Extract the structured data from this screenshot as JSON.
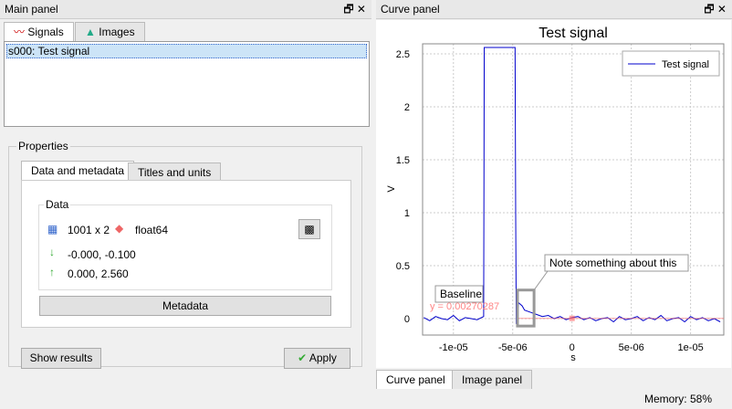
{
  "main_panel": {
    "title": "Main panel",
    "tabs": [
      "Signals",
      "Images"
    ],
    "signals": [
      "s000: Test signal"
    ],
    "properties": {
      "title": "Properties",
      "tabs": [
        "Data and metadata",
        "Titles and units"
      ],
      "data_group": "Data",
      "shape": "1001 x 2",
      "dtype": "float64",
      "min": "-0.000, -0.100",
      "max": "0.000, 2.560",
      "metadata_button": "Metadata"
    },
    "buttons": [
      "Show results",
      "Apply"
    ]
  },
  "curve_panel": {
    "title": "Curve panel",
    "tabs": [
      "Curve panel",
      "Image panel"
    ],
    "chart_data": {
      "type": "line",
      "title": "Test signal",
      "x_label": "s",
      "y_label": "V",
      "grid": true,
      "legend": "top-right",
      "x": [
        -1.25e-05,
        -1.2e-05,
        -1.15e-05,
        -1.1e-05,
        -1.05e-05,
        -1e-05,
        -9.5e-06,
        -9e-06,
        -8.5e-06,
        -8e-06,
        -7.45e-06,
        -7.4e-06,
        -4.8e-06,
        -4.75e-06,
        -4.7e-06,
        -4.5e-06,
        -4.2e-06,
        -4e-06,
        -3.5e-06,
        -3e-06,
        -2.5e-06,
        -2e-06,
        -1.5e-06,
        -1e-06,
        -5e-07,
        0,
        5e-07,
        1e-06,
        1.5e-06,
        2e-06,
        2.5e-06,
        3e-06,
        3.5e-06,
        4e-06,
        4.5e-06,
        5e-06,
        5.5e-06,
        6e-06,
        6.5e-06,
        7e-06,
        7.5e-06,
        8e-06,
        8.5e-06,
        9e-06,
        9.5e-06,
        1e-05,
        1.05e-05,
        1.1e-05,
        1.15e-05,
        1.2e-05,
        1.25e-05
      ],
      "series": [
        {
          "name": "Test signal",
          "color": "#0000cc",
          "values": [
            0.01,
            -0.02,
            0.02,
            0,
            -0.01,
            0.03,
            -0.02,
            0.01,
            0,
            -0.01,
            0.02,
            2.56,
            2.56,
            1.0,
            -0.05,
            0.15,
            0.12,
            0.08,
            0.06,
            0.04,
            0.02,
            0.03,
            0,
            0.02,
            -0.01,
            0.01,
            0.02,
            -0.01,
            0.01,
            -0.02,
            0,
            0.01,
            -0.03,
            0.02,
            -0.01,
            0,
            0.02,
            -0.02,
            0.01,
            -0.01,
            0.03,
            -0.02,
            0,
            0.01,
            -0.03,
            0.02,
            -0.01,
            0.01,
            -0.02,
            0,
            -0.03
          ]
        }
      ],
      "xlim": [
        -1.26e-05,
        1.28e-05
      ],
      "ylim": [
        -0.155,
        2.595
      ],
      "xticks": [
        {
          "value": -1e-05,
          "label": "-1e-05"
        },
        {
          "value": -5e-06,
          "label": "-5e-06"
        },
        0,
        {
          "value": 5e-06,
          "label": "5e-06"
        },
        {
          "value": 1e-05,
          "label": "1e-05"
        }
      ],
      "yticks": [
        0,
        0.5,
        1,
        1.5,
        2,
        2.5
      ],
      "baseline": {
        "label": "Baseline",
        "text": "y = 0.00270287",
        "value": 0.00270287,
        "color": "#ff6666"
      },
      "note": {
        "text": "Note something about this",
        "x": [
          -4.6e-06,
          -3.2e-06
        ],
        "y": [
          -0.07,
          0.27
        ]
      }
    }
  },
  "status": "Memory: 58%"
}
